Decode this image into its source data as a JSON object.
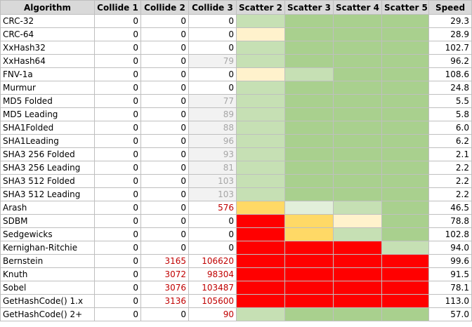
{
  "headers": [
    "Algorithm",
    "Collide 1",
    "Collide 2",
    "Collide 3",
    "Scatter 2",
    "Scatter 3",
    "Scatter 4",
    "Scatter 5",
    "Speed"
  ],
  "colors": {
    "dark_green": "#a9d08e",
    "light_green": "#c6e0b4",
    "pale_green": "#e2efda",
    "cream": "#fff2cc",
    "yellow": "#ffd966",
    "red": "#ff0000",
    "grey_cell": "#f2f2f2",
    "grey_text": "#a6a6a6",
    "red_text": "#c00000"
  },
  "rows": [
    {
      "algorithm": "CRC-32",
      "c1": "0",
      "c2": "0",
      "c3": "0",
      "c2_style": "",
      "c3_style": "",
      "scatter": [
        "light_green",
        "dark_green",
        "dark_green",
        "dark_green"
      ],
      "speed": "29.3"
    },
    {
      "algorithm": "CRC-64",
      "c1": "0",
      "c2": "0",
      "c3": "0",
      "c2_style": "",
      "c3_style": "",
      "scatter": [
        "cream",
        "dark_green",
        "dark_green",
        "dark_green"
      ],
      "speed": "28.9"
    },
    {
      "algorithm": "XxHash32",
      "c1": "0",
      "c2": "0",
      "c3": "0",
      "c2_style": "",
      "c3_style": "",
      "scatter": [
        "light_green",
        "dark_green",
        "dark_green",
        "dark_green"
      ],
      "speed": "102.7"
    },
    {
      "algorithm": "XxHash64",
      "c1": "0",
      "c2": "0",
      "c3": "79",
      "c2_style": "",
      "c3_style": "grey",
      "scatter": [
        "light_green",
        "dark_green",
        "dark_green",
        "dark_green"
      ],
      "speed": "96.2"
    },
    {
      "algorithm": "FNV-1a",
      "c1": "0",
      "c2": "0",
      "c3": "0",
      "c2_style": "",
      "c3_style": "",
      "scatter": [
        "cream",
        "light_green",
        "dark_green",
        "dark_green"
      ],
      "speed": "108.6"
    },
    {
      "algorithm": "Murmur",
      "c1": "0",
      "c2": "0",
      "c3": "0",
      "c2_style": "",
      "c3_style": "",
      "scatter": [
        "light_green",
        "dark_green",
        "dark_green",
        "dark_green"
      ],
      "speed": "24.8"
    },
    {
      "algorithm": "MD5 Folded",
      "c1": "0",
      "c2": "0",
      "c3": "77",
      "c2_style": "",
      "c3_style": "grey",
      "scatter": [
        "light_green",
        "dark_green",
        "dark_green",
        "dark_green"
      ],
      "speed": "5.5"
    },
    {
      "algorithm": "MD5 Leading",
      "c1": "0",
      "c2": "0",
      "c3": "89",
      "c2_style": "",
      "c3_style": "grey",
      "scatter": [
        "light_green",
        "dark_green",
        "dark_green",
        "dark_green"
      ],
      "speed": "5.8"
    },
    {
      "algorithm": "SHA1Folded",
      "c1": "0",
      "c2": "0",
      "c3": "88",
      "c2_style": "",
      "c3_style": "grey",
      "scatter": [
        "light_green",
        "dark_green",
        "dark_green",
        "dark_green"
      ],
      "speed": "6.0"
    },
    {
      "algorithm": "SHA1Leading",
      "c1": "0",
      "c2": "0",
      "c3": "96",
      "c2_style": "",
      "c3_style": "grey",
      "scatter": [
        "light_green",
        "dark_green",
        "dark_green",
        "dark_green"
      ],
      "speed": "6.2"
    },
    {
      "algorithm": "SHA3 256 Folded",
      "c1": "0",
      "c2": "0",
      "c3": "93",
      "c2_style": "",
      "c3_style": "grey",
      "scatter": [
        "light_green",
        "dark_green",
        "dark_green",
        "dark_green"
      ],
      "speed": "2.1"
    },
    {
      "algorithm": "SHA3 256 Leading",
      "c1": "0",
      "c2": "0",
      "c3": "81",
      "c2_style": "",
      "c3_style": "grey",
      "scatter": [
        "light_green",
        "dark_green",
        "dark_green",
        "dark_green"
      ],
      "speed": "2.2"
    },
    {
      "algorithm": "SHA3 512 Folded",
      "c1": "0",
      "c2": "0",
      "c3": "103",
      "c2_style": "",
      "c3_style": "grey",
      "scatter": [
        "light_green",
        "dark_green",
        "dark_green",
        "dark_green"
      ],
      "speed": "2.2"
    },
    {
      "algorithm": "SHA3 512 Leading",
      "c1": "0",
      "c2": "0",
      "c3": "103",
      "c2_style": "",
      "c3_style": "grey",
      "scatter": [
        "light_green",
        "dark_green",
        "dark_green",
        "dark_green"
      ],
      "speed": "2.2"
    },
    {
      "algorithm": "Arash",
      "c1": "0",
      "c2": "0",
      "c3": "576",
      "c2_style": "",
      "c3_style": "red",
      "scatter": [
        "yellow",
        "pale_green",
        "light_green",
        "dark_green"
      ],
      "speed": "46.5"
    },
    {
      "algorithm": "SDBM",
      "c1": "0",
      "c2": "0",
      "c3": "0",
      "c2_style": "",
      "c3_style": "",
      "scatter": [
        "red",
        "yellow",
        "cream",
        "dark_green"
      ],
      "speed": "78.8"
    },
    {
      "algorithm": "Sedgewicks",
      "c1": "0",
      "c2": "0",
      "c3": "0",
      "c2_style": "",
      "c3_style": "",
      "scatter": [
        "red",
        "yellow",
        "light_green",
        "dark_green"
      ],
      "speed": "102.8"
    },
    {
      "algorithm": "Kernighan-Ritchie",
      "c1": "0",
      "c2": "0",
      "c3": "0",
      "c2_style": "",
      "c3_style": "",
      "scatter": [
        "red",
        "red",
        "red",
        "light_green"
      ],
      "speed": "94.0"
    },
    {
      "algorithm": "Bernstein",
      "c1": "0",
      "c2": "3165",
      "c3": "106620",
      "c2_style": "red",
      "c3_style": "red",
      "scatter": [
        "red",
        "red",
        "red",
        "red"
      ],
      "speed": "99.6"
    },
    {
      "algorithm": "Knuth",
      "c1": "0",
      "c2": "3072",
      "c3": "98304",
      "c2_style": "red",
      "c3_style": "red",
      "scatter": [
        "red",
        "red",
        "red",
        "red"
      ],
      "speed": "91.5"
    },
    {
      "algorithm": "Sobel",
      "c1": "0",
      "c2": "3076",
      "c3": "103487",
      "c2_style": "red",
      "c3_style": "red",
      "scatter": [
        "red",
        "red",
        "red",
        "red"
      ],
      "speed": "78.1"
    },
    {
      "algorithm": "GetHashCode() 1.x",
      "c1": "0",
      "c2": "3136",
      "c3": "105600",
      "c2_style": "red",
      "c3_style": "red",
      "scatter": [
        "red",
        "red",
        "red",
        "red"
      ],
      "speed": "113.0"
    },
    {
      "algorithm": "GetHashCode() 2+",
      "c1": "0",
      "c2": "0",
      "c3": "90",
      "c2_style": "",
      "c3_style": "red",
      "scatter": [
        "light_green",
        "dark_green",
        "dark_green",
        "dark_green"
      ],
      "speed": "57.0"
    }
  ]
}
